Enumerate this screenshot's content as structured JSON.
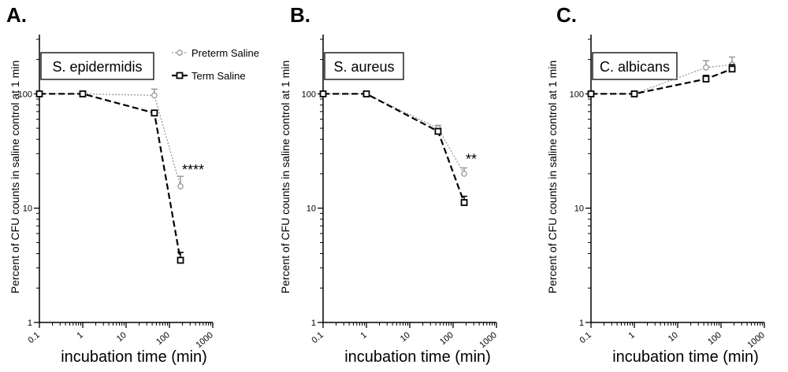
{
  "legend": [
    {
      "label": "Preterm Saline",
      "color": "#999999"
    },
    {
      "label": "Term Saline",
      "color": "#000000"
    }
  ],
  "chart_data": [
    {
      "type": "line",
      "panel_label": "A.",
      "title": "S. epidermidis",
      "xlabel": "incubation time (min)",
      "ylabel": "Percent of CFU counts in saline control at 1 min",
      "x_scale": "log",
      "y_scale": "log",
      "xlim": [
        0.1,
        1000
      ],
      "ylim": [
        1,
        300
      ],
      "x_ticks": [
        "0.1",
        "1",
        "10",
        "100",
        "1000"
      ],
      "y_ticks": [
        "1",
        "10",
        "100"
      ],
      "legend_position": "top-right",
      "series": [
        {
          "name": "Preterm Saline",
          "x": [
            0.1,
            1,
            45,
            180
          ],
          "y": [
            100,
            100,
            97,
            15.5
          ],
          "err": [
            0,
            0,
            13,
            3.5
          ]
        },
        {
          "name": "Term Saline",
          "x": [
            0.1,
            1,
            45,
            180
          ],
          "y": [
            100,
            100,
            68,
            3.5
          ],
          "err": [
            0,
            0,
            0,
            0.6
          ]
        }
      ],
      "annotations": [
        {
          "text": "****",
          "x": 180,
          "y": 21
        }
      ]
    },
    {
      "type": "line",
      "panel_label": "B.",
      "title": "S. aureus",
      "xlabel": "incubation time (min)",
      "ylabel": "Percent of CFU counts in saline control at 1 min",
      "x_scale": "log",
      "y_scale": "log",
      "xlim": [
        0.1,
        1000
      ],
      "ylim": [
        1,
        300
      ],
      "x_ticks": [
        "0.1",
        "1",
        "10",
        "100",
        "1000"
      ],
      "y_ticks": [
        "1",
        "10",
        "100"
      ],
      "series": [
        {
          "name": "Preterm Saline",
          "x": [
            0.1,
            1,
            45,
            180
          ],
          "y": [
            100,
            100,
            50,
            20
          ],
          "err": [
            0,
            0,
            3,
            2.5
          ]
        },
        {
          "name": "Term Saline",
          "x": [
            0.1,
            1,
            45,
            180
          ],
          "y": [
            100,
            100,
            47,
            11.2
          ],
          "err": [
            0,
            0,
            2,
            1.5
          ]
        }
      ],
      "annotations": [
        {
          "text": "**",
          "x": 180,
          "y": 26
        }
      ]
    },
    {
      "type": "line",
      "panel_label": "C.",
      "title": "C. albicans",
      "xlabel": "incubation time (min)",
      "ylabel": "Percent of CFU counts in saline control at 1 min",
      "x_scale": "log",
      "y_scale": "log",
      "xlim": [
        0.1,
        1000
      ],
      "ylim": [
        1,
        300
      ],
      "x_ticks": [
        "0.1",
        "1",
        "10",
        "100",
        "1000"
      ],
      "y_ticks": [
        "1",
        "10",
        "100"
      ],
      "series": [
        {
          "name": "Preterm Saline",
          "x": [
            0.1,
            1,
            45,
            180
          ],
          "y": [
            100,
            100,
            170,
            180
          ],
          "err": [
            0,
            0,
            25,
            30
          ]
        },
        {
          "name": "Term Saline",
          "x": [
            0.1,
            1,
            45,
            180
          ],
          "y": [
            100,
            100,
            135,
            165
          ],
          "err": [
            0,
            0,
            10,
            15
          ]
        }
      ],
      "annotations": []
    }
  ]
}
